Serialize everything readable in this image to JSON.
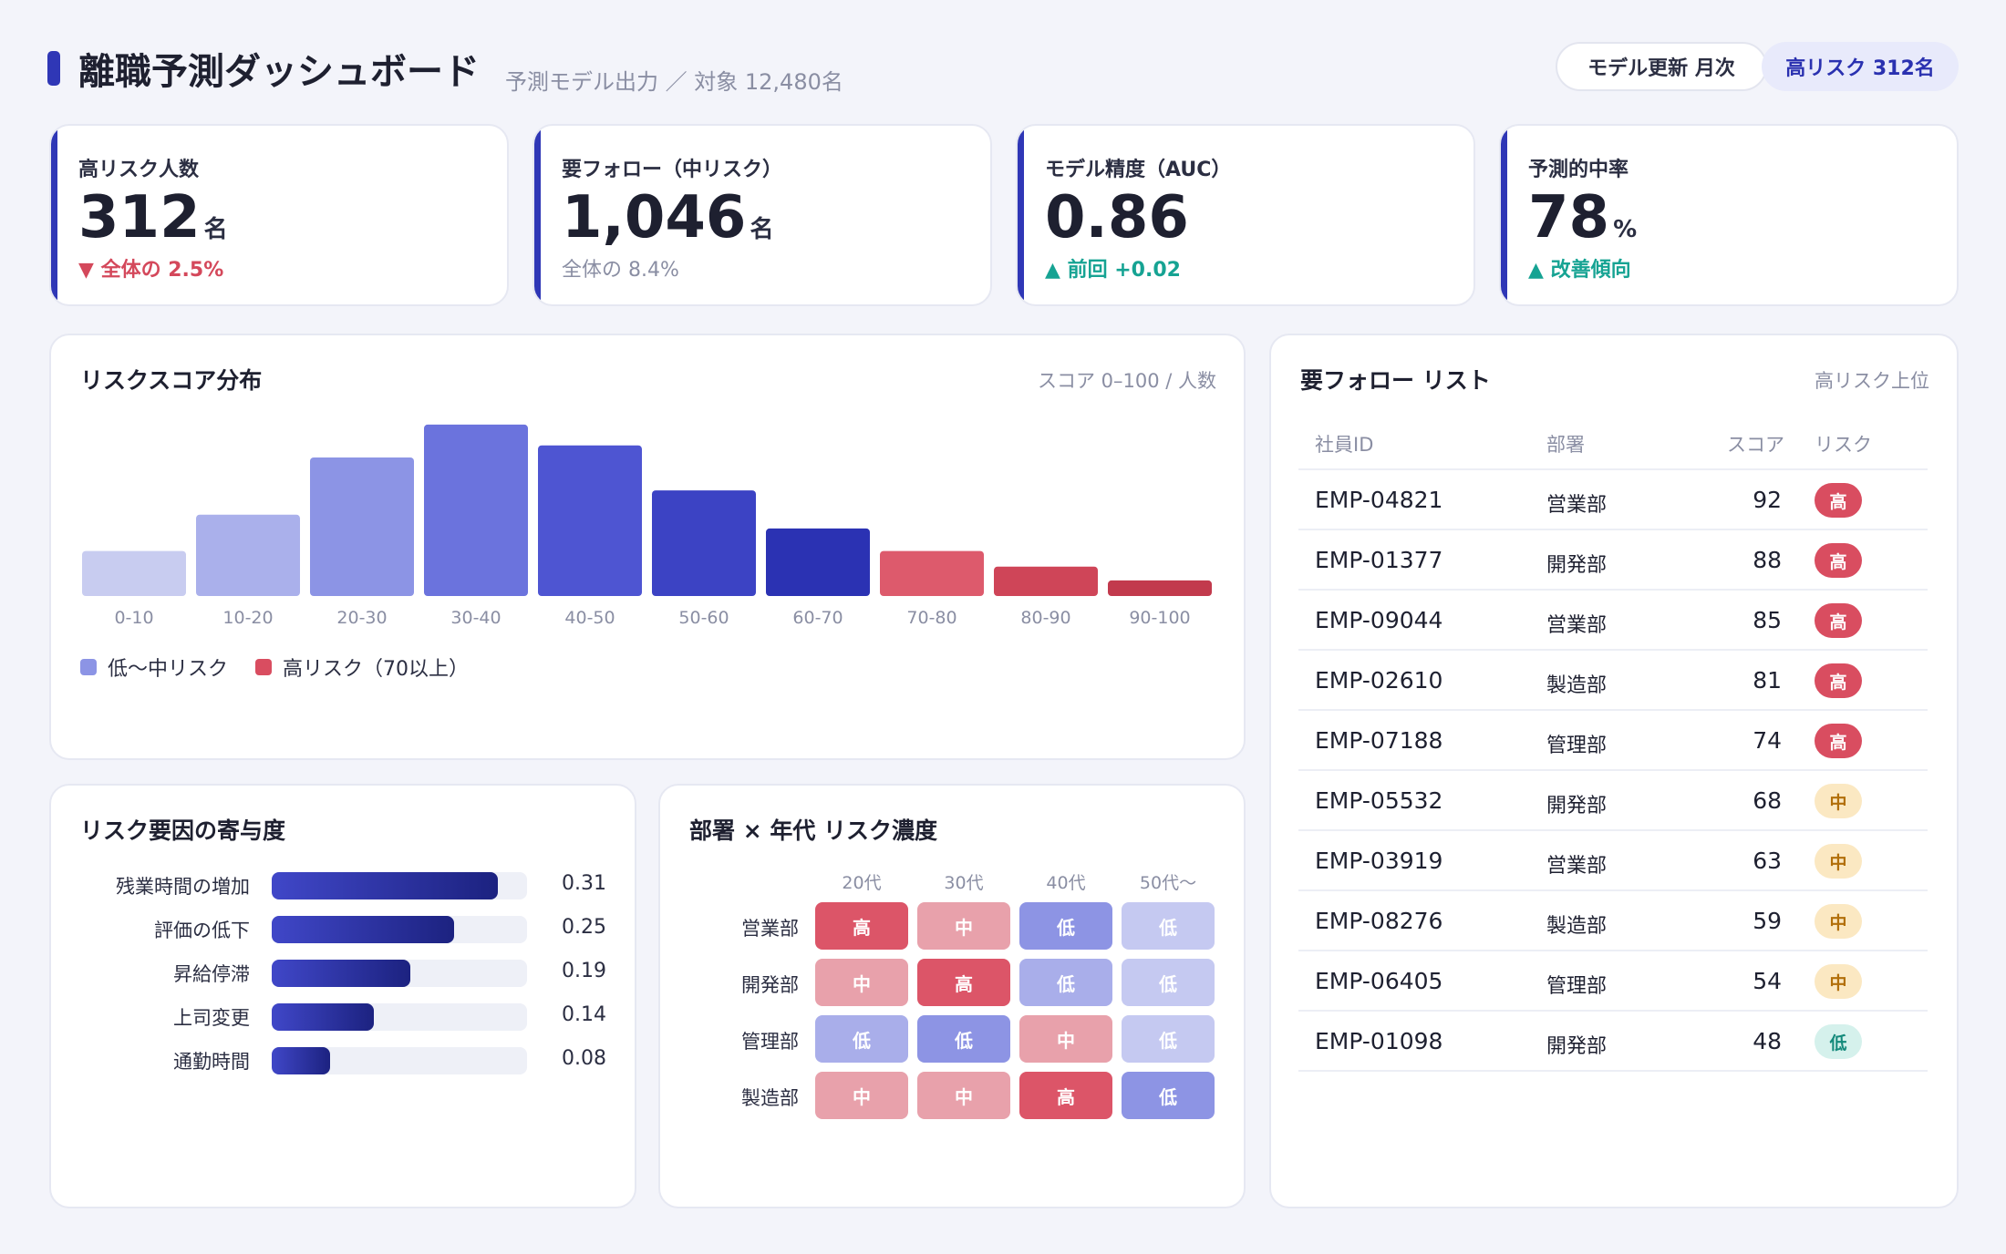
{
  "header": {
    "title": "離職予測ダッシュボード",
    "subtitle": "予測モデル出力 ／ 対象 12,480名",
    "model_update": "モデル更新 月次",
    "high_risk_pill": "高リスク 312名"
  },
  "kpis": [
    {
      "label": "高リスク人数",
      "value": "312",
      "unit": "名",
      "note": "▼ 全体の 2.5%"
    },
    {
      "label": "要フォロー（中リスク）",
      "value": "1,046",
      "unit": "名",
      "note": "全体の 8.4%"
    },
    {
      "label": "モデル精度（AUC）",
      "value": "0.86",
      "unit": "",
      "note": "▲ 前回 +0.02"
    },
    {
      "label": "予測的中率",
      "value": "78",
      "unit": "%",
      "note": "▲ 改善傾向"
    }
  ],
  "distribution": {
    "title": "リスクスコア分布",
    "meta": "スコア 0–100 / 人数",
    "legend_low": "低〜中リスク",
    "legend_high": "高リスク（70以上）"
  },
  "chart_data": {
    "type": "bar",
    "categories": [
      "0-10",
      "10-20",
      "20-30",
      "30-40",
      "40-50",
      "50-60",
      "60-70",
      "70-80",
      "80-90",
      "90-100"
    ],
    "values": [
      26,
      47,
      80,
      99,
      87,
      61,
      39,
      26,
      17,
      9
    ],
    "colors": [
      "#c8ccf0",
      "#aab0eb",
      "#8c94e5",
      "#6b73dd",
      "#4e55d2",
      "#3c43c4",
      "#2b32b3",
      "#dd5a6c",
      "#cf4558",
      "#c23a4d"
    ]
  },
  "factors": {
    "title": "リスク要因の寄与度",
    "items": [
      {
        "label": "残業時間の増加",
        "value": 0.31,
        "text": "0.31"
      },
      {
        "label": "評価の低下",
        "value": 0.25,
        "text": "0.25"
      },
      {
        "label": "昇給停滞",
        "value": 0.19,
        "text": "0.19"
      },
      {
        "label": "上司変更",
        "value": 0.14,
        "text": "0.14"
      },
      {
        "label": "通勤時間",
        "value": 0.08,
        "text": "0.08"
      }
    ]
  },
  "heatmap": {
    "title": "部署 × 年代 リスク濃度",
    "columns": [
      "20代",
      "30代",
      "40代",
      "50代〜"
    ],
    "rows": [
      {
        "dept": "営業部",
        "cells": [
          "高",
          "中",
          "低",
          "低"
        ],
        "shades": [
          "#dc5568",
          "#e8a1ab",
          "#8d94e4",
          "#c5c9f1"
        ]
      },
      {
        "dept": "開発部",
        "cells": [
          "中",
          "高",
          "低",
          "低"
        ],
        "shades": [
          "#e8a1ab",
          "#dc5568",
          "#a9aeea",
          "#c5c9f1"
        ]
      },
      {
        "dept": "管理部",
        "cells": [
          "低",
          "低",
          "中",
          "低"
        ],
        "shades": [
          "#a9aeea",
          "#8d94e4",
          "#e8a1ab",
          "#c5c9f1"
        ]
      },
      {
        "dept": "製造部",
        "cells": [
          "中",
          "中",
          "高",
          "低"
        ],
        "shades": [
          "#e8a1ab",
          "#e8a1ab",
          "#dc5568",
          "#8d94e4"
        ]
      }
    ]
  },
  "follow_list": {
    "title": "要フォロー リスト",
    "meta": "高リスク上位",
    "columns": [
      "社員ID",
      "部署",
      "スコア",
      "リスク"
    ],
    "rows": [
      {
        "id": "EMP-04821",
        "dept": "営業部",
        "score": "92",
        "risk": "高",
        "level": "high"
      },
      {
        "id": "EMP-01377",
        "dept": "開発部",
        "score": "88",
        "risk": "高",
        "level": "high"
      },
      {
        "id": "EMP-09044",
        "dept": "営業部",
        "score": "85",
        "risk": "高",
        "level": "high"
      },
      {
        "id": "EMP-02610",
        "dept": "製造部",
        "score": "81",
        "risk": "高",
        "level": "high"
      },
      {
        "id": "EMP-07188",
        "dept": "管理部",
        "score": "74",
        "risk": "高",
        "level": "high"
      },
      {
        "id": "EMP-05532",
        "dept": "開発部",
        "score": "68",
        "risk": "中",
        "level": "mid"
      },
      {
        "id": "EMP-03919",
        "dept": "営業部",
        "score": "63",
        "risk": "中",
        "level": "mid"
      },
      {
        "id": "EMP-08276",
        "dept": "製造部",
        "score": "59",
        "risk": "中",
        "level": "mid"
      },
      {
        "id": "EMP-06405",
        "dept": "管理部",
        "score": "54",
        "risk": "中",
        "level": "mid"
      },
      {
        "id": "EMP-01098",
        "dept": "開発部",
        "score": "48",
        "risk": "低",
        "level": "low"
      }
    ]
  }
}
